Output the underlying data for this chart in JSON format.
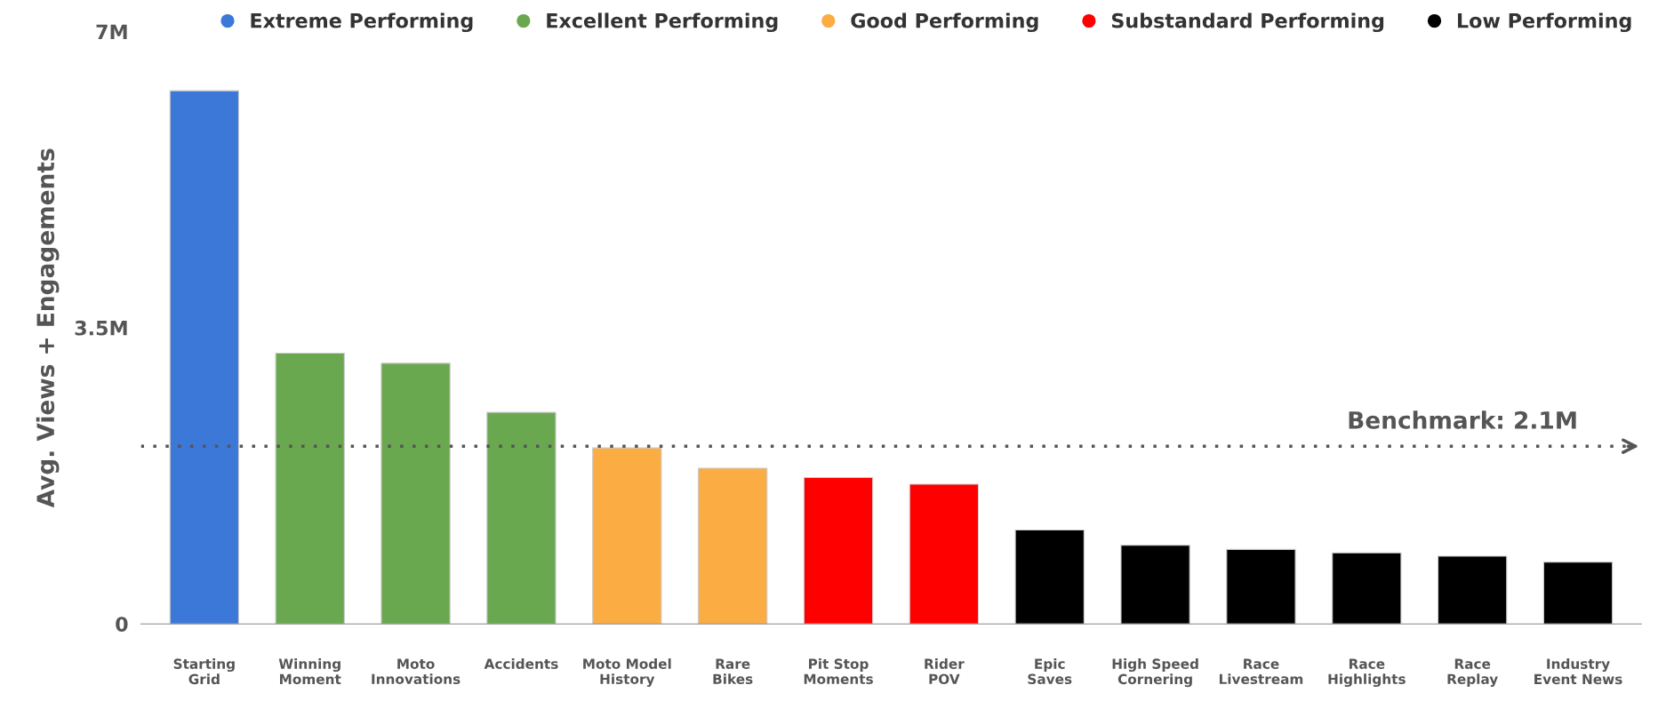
{
  "chart_data": {
    "type": "bar",
    "ylabel": "Avg. Views + Engagements",
    "categories": [
      "Starting\nGrid",
      "Winning\nMoment",
      "Moto\nInnovations",
      "Accidents",
      "Moto Model\nHistory",
      "Rare\nBikes",
      "Pit Stop\nMoments",
      "Rider\nPOV",
      "Epic\nSaves",
      "High Speed\nCornering",
      "Race\nLivestream",
      "Race\nHighlights",
      "Race\nReplay",
      "Industry\nEvent News"
    ],
    "series": [
      {
        "name": "Extreme Performing",
        "color": "#3c78d8",
        "values": [
          6.3,
          null,
          null,
          null,
          null,
          null,
          null,
          null,
          null,
          null,
          null,
          null,
          null,
          null
        ]
      },
      {
        "name": "Excellent Performing",
        "color": "#6aa84f",
        "values": [
          null,
          3.2,
          3.08,
          2.5,
          null,
          null,
          null,
          null,
          null,
          null,
          null,
          null,
          null,
          null
        ]
      },
      {
        "name": "Good Performing",
        "color": "#fbac42",
        "values": [
          null,
          null,
          null,
          null,
          2.08,
          1.84,
          null,
          null,
          null,
          null,
          null,
          null,
          null,
          null
        ]
      },
      {
        "name": "Substandard Performing",
        "color": "#ff0000",
        "values": [
          null,
          null,
          null,
          null,
          null,
          null,
          1.73,
          1.65,
          null,
          null,
          null,
          null,
          null,
          null
        ]
      },
      {
        "name": "Low Performing",
        "color": "#000000",
        "values": [
          null,
          null,
          null,
          null,
          null,
          null,
          null,
          null,
          1.11,
          0.93,
          0.88,
          0.84,
          0.8,
          0.73
        ]
      }
    ],
    "ylim": [
      0,
      7
    ],
    "yticks": [
      0,
      {
        "value": 3.5,
        "label": "3.5M"
      },
      {
        "value": 7,
        "label": "7M"
      }
    ],
    "ref_lines": [
      {
        "axis": "y",
        "value": 2.1,
        "label": "Benchmark: 2.1M",
        "color": "#555555",
        "line_style": "dotted"
      }
    ],
    "legend": "top",
    "grid": false
  }
}
